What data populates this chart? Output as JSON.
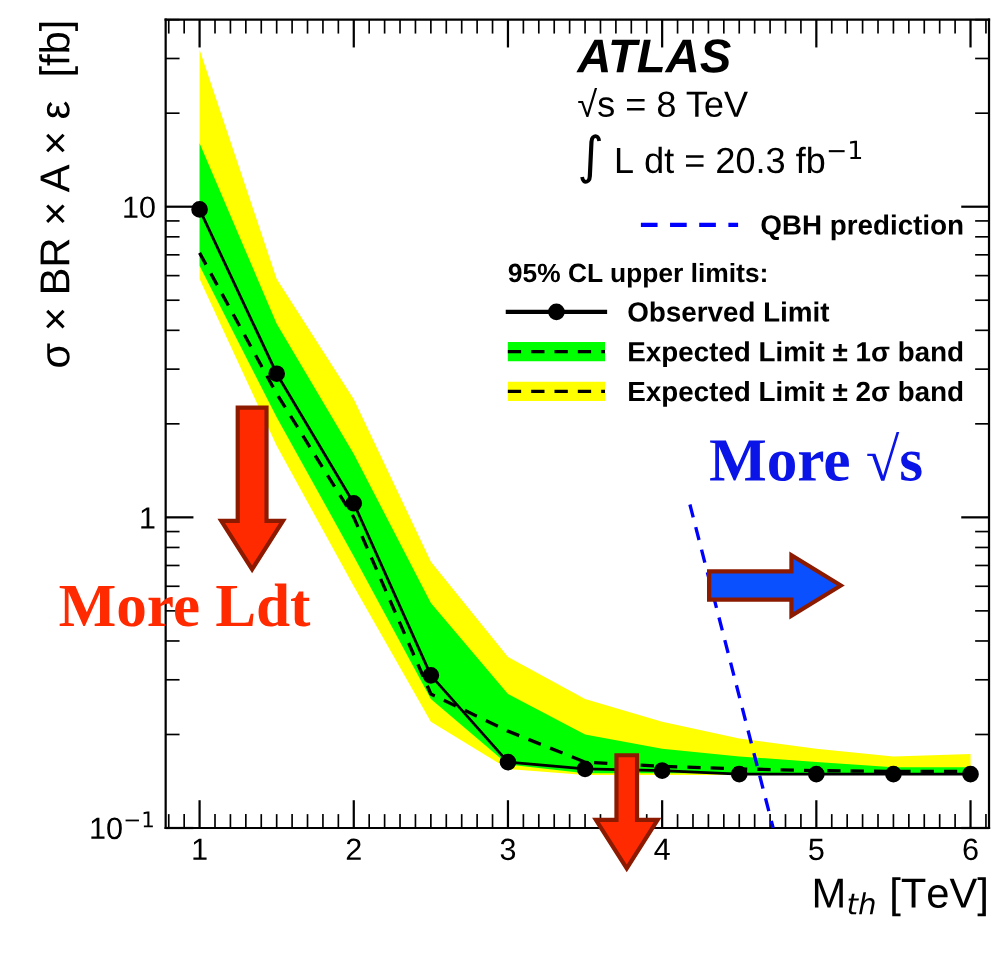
{
  "chart_data": {
    "type": "line",
    "xlabel": "M$_{th}$ [TeV]",
    "ylabel": "σ × BR × A × ε  [fb]",
    "log": "y",
    "xlim": [
      0.78,
      6.12
    ],
    "xticks": [
      1,
      2,
      3,
      4,
      5,
      6
    ],
    "ylim": [
      0.1,
      40
    ],
    "yticks": [
      {
        "value": 0.1,
        "label": "10$^{−1}$"
      },
      1,
      10
    ],
    "grid": false,
    "legend": "top right",
    "legend_title": "95% CL upper limits:",
    "x": [
      1,
      1.5,
      2,
      2.5,
      3,
      3.5,
      4,
      4.5,
      5,
      5.5,
      6
    ],
    "series": [
      {
        "name": "QBH prediction",
        "color": "#0000ff",
        "line_style": "dashed",
        "marker": "none",
        "x": [
          4.18,
          4.72
        ],
        "values": [
          1.1,
          0.1
        ]
      },
      {
        "name": "Observed Limit",
        "color": "#000000",
        "line_style": "solid",
        "marker": "circle",
        "values": [
          9.8,
          2.9,
          1.11,
          0.31,
          0.163,
          0.155,
          0.153,
          0.149,
          0.149,
          0.149,
          0.149
        ]
      },
      {
        "color": "#000000",
        "line_style": "dashed",
        "marker": "none",
        "values": [
          7.1,
          2.5,
          1.0,
          0.27,
          0.205,
          0.163,
          0.158,
          0.155,
          0.153,
          0.152,
          0.152
        ]
      },
      {
        "name": "Expected Limit ± 1σ band",
        "color": "#00ff00",
        "line_style": "dashed",
        "marker": "none",
        "values": [
          null,
          null,
          null,
          null,
          null,
          null,
          null,
          null,
          null,
          null,
          null
        ],
        "lower": [
          6.45,
          2.1,
          0.75,
          0.26,
          0.16,
          0.15,
          0.15,
          0.15,
          0.15,
          0.15,
          0.15
        ],
        "upper": [
          16,
          4.2,
          1.6,
          0.53,
          0.27,
          0.2,
          0.18,
          0.17,
          0.163,
          0.157,
          0.157
        ]
      },
      {
        "name": "Expected Limit ± 2σ band",
        "color": "#ffff00",
        "line_style": "dashed",
        "marker": "none",
        "values": [
          null,
          null,
          null,
          null,
          null,
          null,
          null,
          null,
          null,
          null,
          null
        ],
        "lower": [
          5.85,
          1.7,
          0.6,
          0.22,
          0.155,
          0.148,
          0.148,
          0.148,
          0.148,
          0.148,
          0.148
        ],
        "upper": [
          32,
          5.85,
          2.4,
          0.72,
          0.355,
          0.26,
          0.22,
          0.194,
          0.18,
          0.17,
          0.173
        ]
      }
    ],
    "annotations": [
      "ATLAS",
      "√s = 8 TeV",
      "∫ L dt = 20.3 fb$^{−1}$",
      "More Ldt",
      "More √s"
    ]
  }
}
